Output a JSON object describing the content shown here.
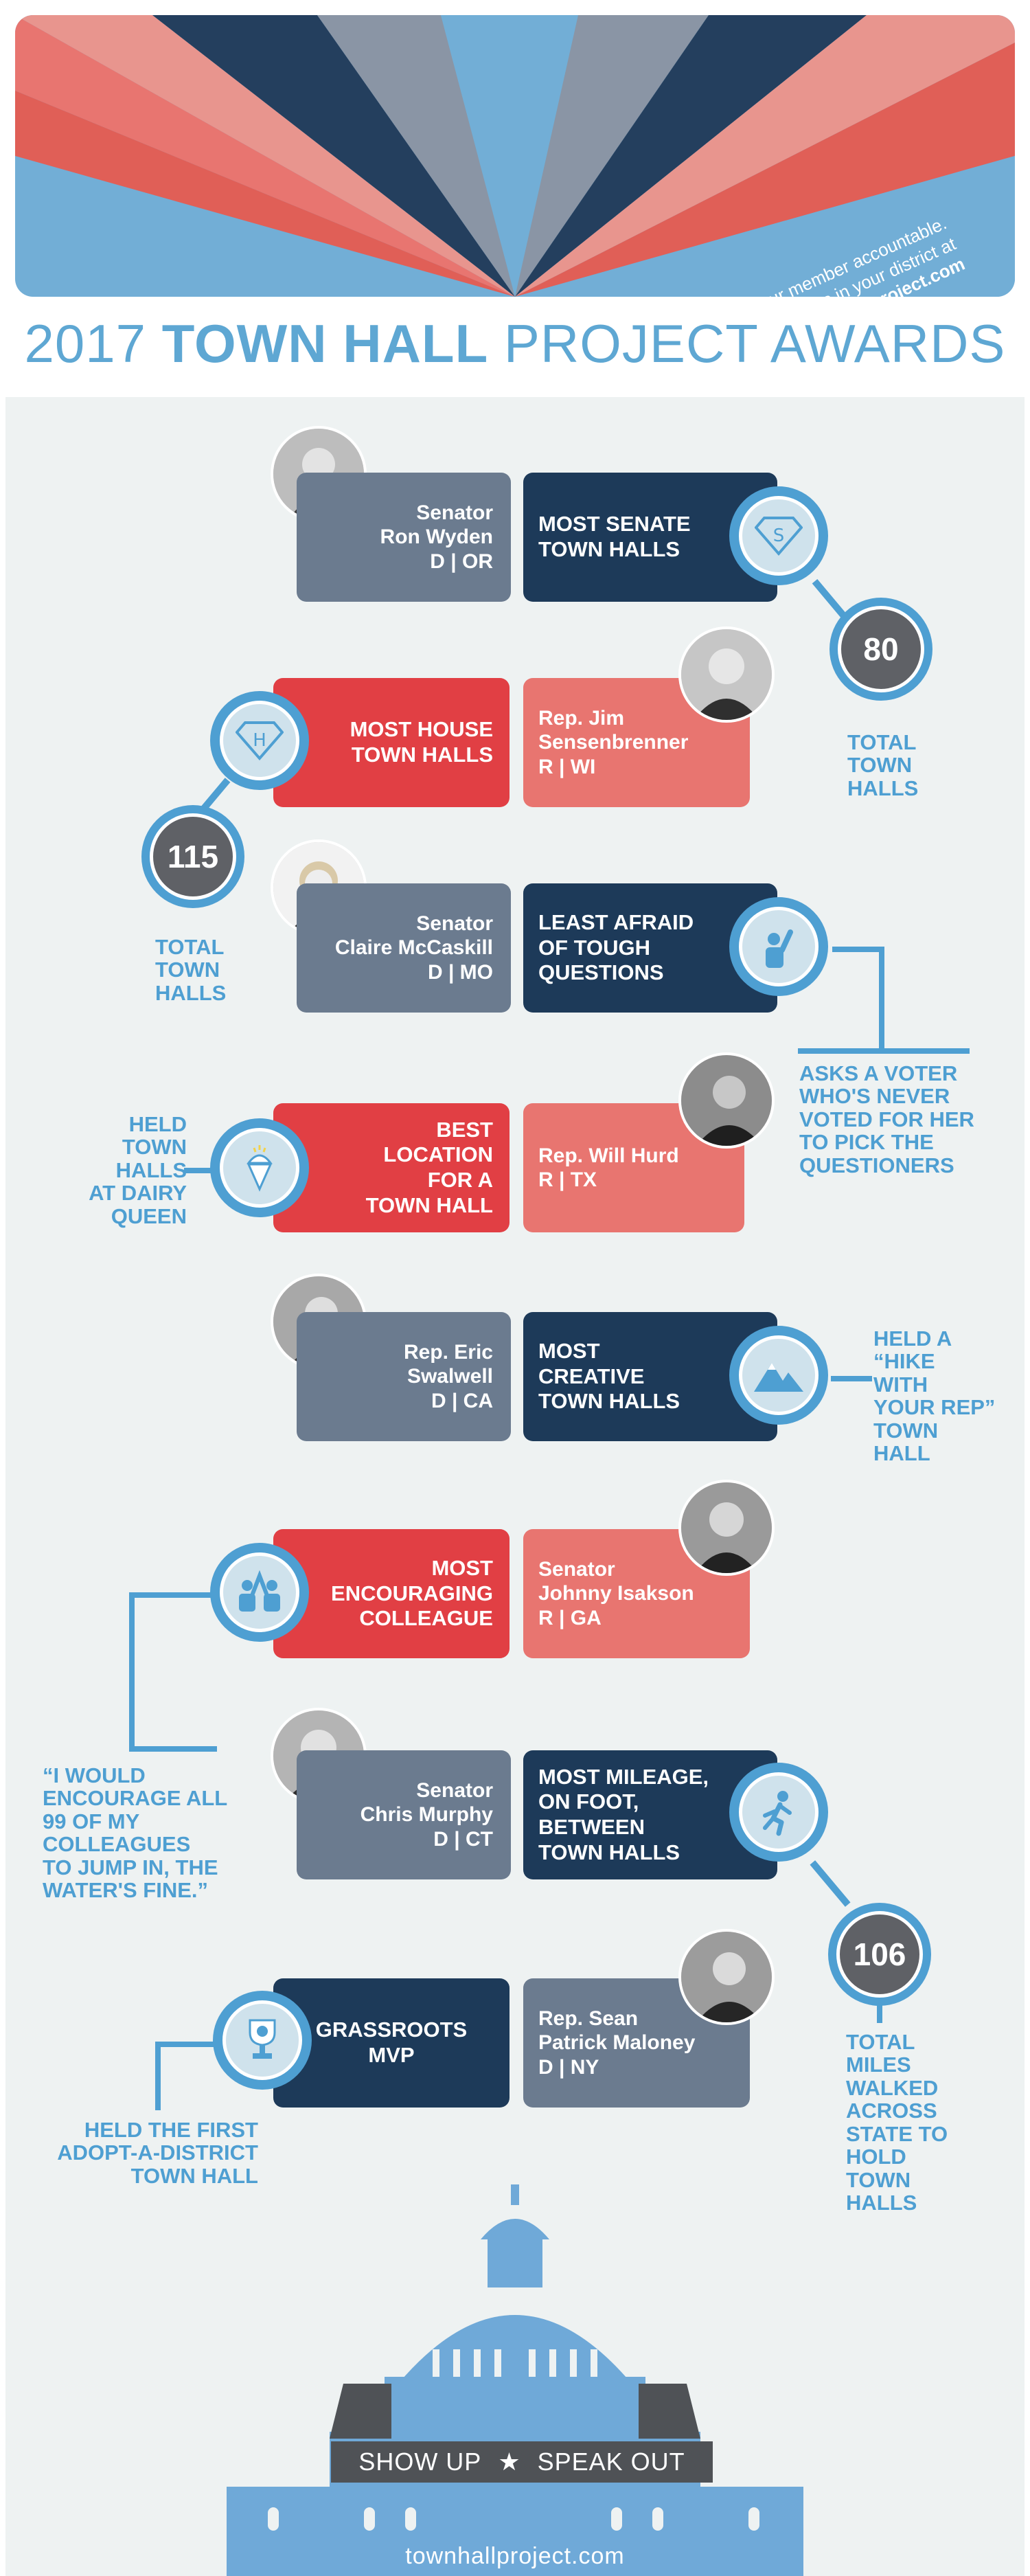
{
  "banner": {
    "line1": "Hold your member accountable.",
    "line2": "Find town hall events in your district at",
    "url": "www.townhallproject.com"
  },
  "title": {
    "year": "2017",
    "bold": "TOWN HALL",
    "rest": "PROJECT AWARDS"
  },
  "awards": [
    {
      "person": [
        "Senator",
        "Ron Wyden",
        "D | OR"
      ],
      "award": [
        "MOST SENATE",
        "TOWN HALLS"
      ],
      "stat": "80",
      "note": [
        "TOTAL",
        "TOWN",
        "HALLS"
      ],
      "icon": "superman-s-icon"
    },
    {
      "person": [
        "Rep. Jim",
        "Sensenbrenner",
        "R | WI"
      ],
      "award": [
        "MOST HOUSE",
        "TOWN HALLS"
      ],
      "stat": "115",
      "note": [
        "TOTAL",
        "TOWN",
        "HALLS"
      ],
      "icon": "superman-h-icon"
    },
    {
      "person": [
        "Senator",
        "Claire McCaskill",
        "D | MO"
      ],
      "award": [
        "LEAST AFRAID",
        "OF TOUGH",
        "QUESTIONS"
      ],
      "note": [
        "ASKS A VOTER",
        "WHO'S NEVER",
        "VOTED FOR HER",
        "TO PICK THE",
        "QUESTIONERS"
      ],
      "icon": "raised-hand-icon"
    },
    {
      "person": [
        "Rep. Will Hurd",
        "R | TX"
      ],
      "award": [
        "BEST",
        "LOCATION",
        "FOR A",
        "TOWN HALL"
      ],
      "note": [
        "HELD",
        "TOWN",
        "HALLS",
        "AT DAIRY",
        "QUEEN"
      ],
      "icon": "ice-cream-cone-icon"
    },
    {
      "person": [
        "Rep. Eric",
        "Swalwell",
        "D | CA"
      ],
      "award": [
        "MOST",
        "CREATIVE",
        "TOWN HALLS"
      ],
      "note": [
        "HELD A",
        "“HIKE",
        "WITH",
        "YOUR REP”",
        "TOWN",
        "HALL"
      ],
      "icon": "mountain-icon"
    },
    {
      "person": [
        "Senator",
        "Johnny Isakson",
        "R | GA"
      ],
      "award": [
        "MOST",
        "ENCOURAGING",
        "COLLEAGUE"
      ],
      "note": [
        "“I WOULD",
        "ENCOURAGE ALL",
        "99 OF MY",
        "COLLEAGUES",
        "TO JUMP IN, THE",
        "WATER'S FINE.”"
      ],
      "icon": "high-five-icon"
    },
    {
      "person": [
        "Senator",
        "Chris Murphy",
        "D | CT"
      ],
      "award": [
        "MOST MILEAGE,",
        "ON FOOT,",
        "BETWEEN",
        "TOWN HALLS"
      ],
      "stat": "106",
      "note": [
        "TOTAL",
        "MILES",
        "WALKED",
        "ACROSS",
        "STATE TO",
        "HOLD",
        "TOWN",
        "HALLS"
      ],
      "icon": "runner-icon"
    },
    {
      "person": [
        "Rep. Sean",
        "Patrick Maloney",
        "D | NY"
      ],
      "award": [
        "GRASSROOTS",
        "MVP"
      ],
      "note": [
        "HELD THE FIRST",
        "ADOPT-A-DISTRICT",
        "TOWN HALL"
      ],
      "icon": "trophy-icon"
    }
  ],
  "footer": {
    "slogan_left": "SHOW UP",
    "slogan_star": "★",
    "slogan_right": "SPEAK OUT",
    "url": "townhallproject.com"
  },
  "colors": {
    "light_blue": "#4e9fd2",
    "navy": "#1d3a59",
    "red": "#e13f44",
    "salmon": "#e87570",
    "slate": "#6b7b8f",
    "background": "#eef2f2"
  }
}
